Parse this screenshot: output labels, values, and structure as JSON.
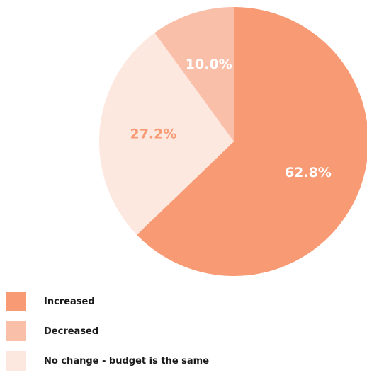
{
  "chart_data": {
    "type": "pie",
    "title": "",
    "slices": [
      {
        "label": "Increased",
        "value": 62.8,
        "display": "62.8%",
        "color": "#F89A74",
        "label_color": "#FFFFFF"
      },
      {
        "label": "No change - budget is the same",
        "value": 27.2,
        "display": "27.2%",
        "color": "#FDE8E0",
        "label_color": "#F89A74"
      },
      {
        "label": "Decreased",
        "value": 10.0,
        "display": "10.0%",
        "color": "#FABFA9",
        "label_color": "#FFFFFF"
      }
    ],
    "start": "12 o'clock",
    "direction": "clockwise"
  },
  "legend": {
    "placement": "bottom-left",
    "items": [
      {
        "label": "Increased",
        "color": "#F89A74"
      },
      {
        "label": "Decreased",
        "color": "#FABFA9"
      },
      {
        "label": "No change - budget is the same",
        "color": "#FDE8E0"
      }
    ]
  }
}
